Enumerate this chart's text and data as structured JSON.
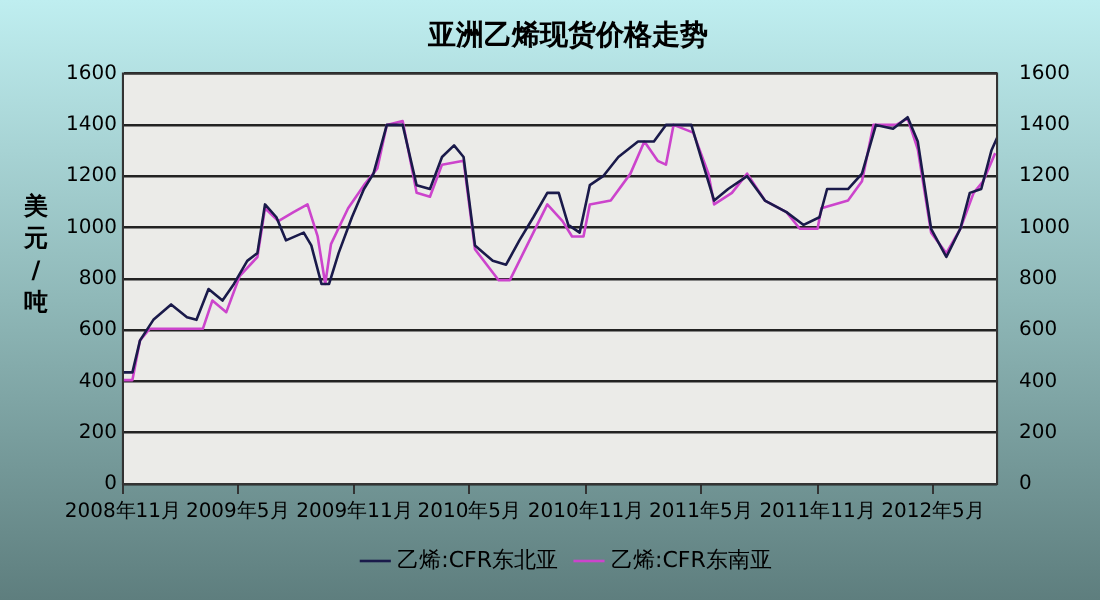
{
  "chart_data": {
    "type": "line",
    "title": "亚洲乙烯现货价格走势",
    "ylabel": "美元/吨",
    "xlim": [
      "2008-11-01",
      "2012-08-10"
    ],
    "xticks": [
      {
        "value": "2008-11",
        "label": "2008年11月"
      },
      {
        "value": "2009-05",
        "label": "2009年5月"
      },
      {
        "value": "2009-11",
        "label": "2009年11月"
      },
      {
        "value": "2010-05",
        "label": "2010年5月"
      },
      {
        "value": "2010-11",
        "label": "2010年11月"
      },
      {
        "value": "2011-05",
        "label": "2011年5月"
      },
      {
        "value": "2011-11",
        "label": "2011年11月"
      },
      {
        "value": "2012-05",
        "label": "2012年5月"
      }
    ],
    "ylim": [
      0,
      1600
    ],
    "yticks": [
      0,
      200,
      400,
      600,
      800,
      1000,
      1200,
      1400,
      1600
    ],
    "y2lim": [
      0,
      1600
    ],
    "y2ticks": [
      0,
      200,
      400,
      600,
      800,
      1000,
      1200,
      1400,
      1600
    ],
    "grid": "y",
    "legend": "bottom",
    "marker": "none",
    "line_style": "solid",
    "series": [
      {
        "name": "乙烯:CFR东北亚",
        "color": "#1a1a4a",
        "x": [
          "2008-11-01",
          "2008-11-16",
          "2008-11-28",
          "2008-12-19",
          "2009-01-16",
          "2009-02-10",
          "2009-02-25",
          "2009-03-16",
          "2009-04-07",
          "2009-04-25",
          "2009-05-16",
          "2009-06-01",
          "2009-06-13",
          "2009-07-01",
          "2009-07-16",
          "2009-08-13",
          "2009-08-25",
          "2009-09-10",
          "2009-09-22",
          "2009-10-07",
          "2009-10-28",
          "2009-11-16",
          "2009-12-01",
          "2009-12-22",
          "2010-01-16",
          "2010-02-07",
          "2010-02-28",
          "2010-03-19",
          "2010-04-07",
          "2010-04-22",
          "2010-05-10",
          "2010-06-07",
          "2010-06-28",
          "2010-07-19",
          "2010-08-10",
          "2010-09-01",
          "2010-09-19",
          "2010-10-04",
          "2010-10-22",
          "2010-11-07",
          "2010-11-28",
          "2010-12-22",
          "2011-01-22",
          "2011-02-16",
          "2011-03-07",
          "2011-04-16",
          "2011-05-01",
          "2011-05-22",
          "2011-06-13",
          "2011-07-13",
          "2011-08-10",
          "2011-09-13",
          "2011-10-10",
          "2011-11-04",
          "2011-11-16",
          "2011-12-19",
          "2012-01-10",
          "2012-02-01",
          "2012-02-28",
          "2012-03-22",
          "2012-04-07",
          "2012-04-28",
          "2012-05-22",
          "2012-06-13",
          "2012-06-28",
          "2012-07-16",
          "2012-08-01",
          "2012-08-10"
        ],
        "values": [
          435,
          435,
          560,
          640,
          700,
          650,
          640,
          760,
          715,
          780,
          870,
          900,
          1090,
          1040,
          950,
          980,
          930,
          780,
          780,
          900,
          1040,
          1150,
          1210,
          1400,
          1400,
          1165,
          1150,
          1275,
          1320,
          1275,
          930,
          870,
          855,
          950,
          1040,
          1135,
          1135,
          1010,
          980,
          1165,
          1200,
          1275,
          1335,
          1335,
          1400,
          1400,
          1275,
          1105,
          1150,
          1200,
          1105,
          1060,
          1010,
          1040,
          1150,
          1150,
          1210,
          1400,
          1385,
          1430,
          1335,
          995,
          885,
          995,
          1135,
          1150,
          1300,
          1350
        ]
      },
      {
        "name": "乙烯:CFR东南亚",
        "color": "#cc44cc",
        "x": [
          "2008-11-01",
          "2008-11-16",
          "2008-11-28",
          "2008-12-13",
          "2009-01-16",
          "2009-03-07",
          "2009-03-22",
          "2009-04-13",
          "2009-05-04",
          "2009-06-01",
          "2009-06-13",
          "2009-07-04",
          "2009-07-28",
          "2009-08-19",
          "2009-09-04",
          "2009-09-16",
          "2009-09-25",
          "2009-10-22",
          "2009-11-16",
          "2009-12-07",
          "2009-12-22",
          "2010-01-16",
          "2010-02-07",
          "2010-02-28",
          "2010-03-19",
          "2010-04-22",
          "2010-05-10",
          "2010-06-16",
          "2010-07-04",
          "2010-07-25",
          "2010-08-10",
          "2010-09-01",
          "2010-09-25",
          "2010-10-10",
          "2010-10-28",
          "2010-11-07",
          "2010-12-10",
          "2011-01-10",
          "2011-02-01",
          "2011-02-22",
          "2011-03-07",
          "2011-03-19",
          "2011-04-19",
          "2011-05-13",
          "2011-05-22",
          "2011-06-19",
          "2011-07-13",
          "2011-08-10",
          "2011-09-13",
          "2011-10-04",
          "2011-11-01",
          "2011-11-07",
          "2011-12-19",
          "2012-01-10",
          "2012-01-28",
          "2012-03-04",
          "2012-03-22",
          "2012-04-07",
          "2012-04-28",
          "2012-05-22",
          "2012-06-13",
          "2012-07-04",
          "2012-07-19",
          "2012-08-07"
        ],
        "values": [
          405,
          405,
          560,
          605,
          605,
          605,
          715,
          670,
          810,
          885,
          1075,
          1025,
          1060,
          1090,
          965,
          780,
          935,
          1075,
          1165,
          1230,
          1400,
          1415,
          1135,
          1120,
          1245,
          1260,
          915,
          795,
          795,
          900,
          980,
          1090,
          1025,
          965,
          965,
          1090,
          1105,
          1210,
          1335,
          1260,
          1245,
          1400,
          1370,
          1210,
          1090,
          1135,
          1210,
          1105,
          1060,
          995,
          995,
          1075,
          1105,
          1180,
          1400,
          1400,
          1425,
          1305,
          980,
          900,
          995,
          1135,
          1180,
          1290
        ]
      }
    ]
  }
}
